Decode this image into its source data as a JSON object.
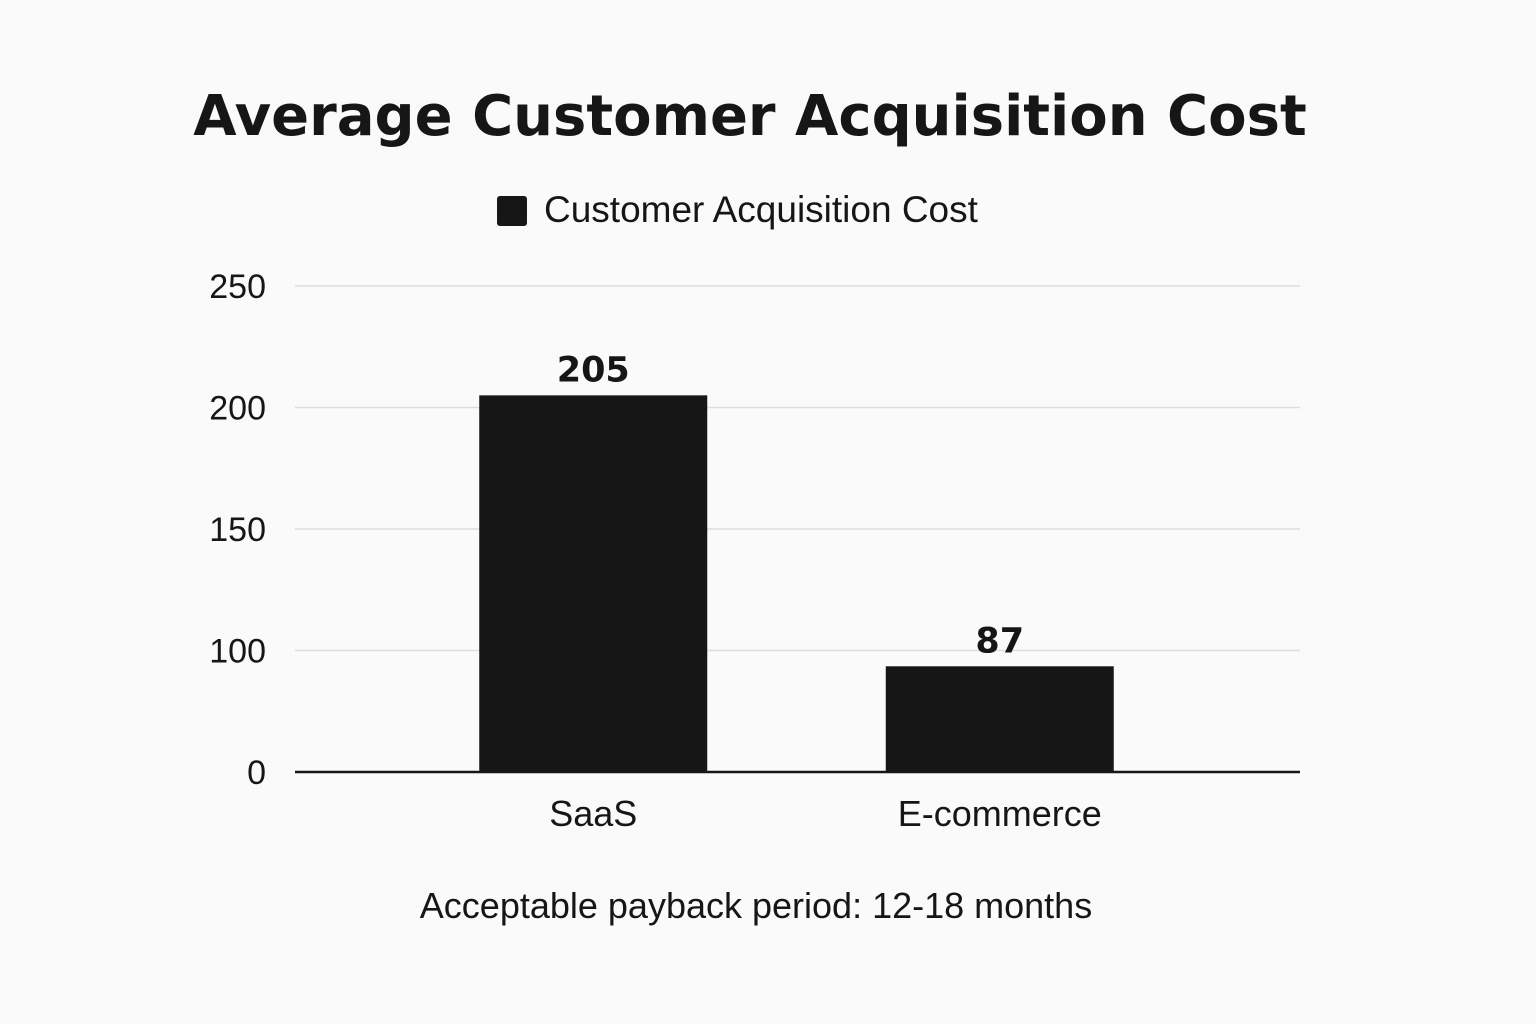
{
  "chart_data": {
    "type": "bar",
    "title": "Average Customer Acquisition Cost",
    "categories": [
      "SaaS",
      "E-commerce"
    ],
    "series": [
      {
        "name": "Customer Acquisition Cost",
        "values": [
          205,
          87
        ]
      }
    ],
    "data_labels": [
      "205",
      "87"
    ],
    "y_ticks": [
      {
        "value": 0,
        "label": "0"
      },
      {
        "value": 100,
        "label": "100"
      },
      {
        "value": 150,
        "label": "150"
      },
      {
        "value": 200,
        "label": "200"
      },
      {
        "value": 250,
        "label": "250"
      }
    ],
    "ylim": [
      0,
      250
    ],
    "xlabel": "",
    "ylabel": "",
    "grid": true,
    "legend_position": "top-center",
    "bar_color": "#161616",
    "annotation": "Acceptable payback period: 12-18 months"
  }
}
